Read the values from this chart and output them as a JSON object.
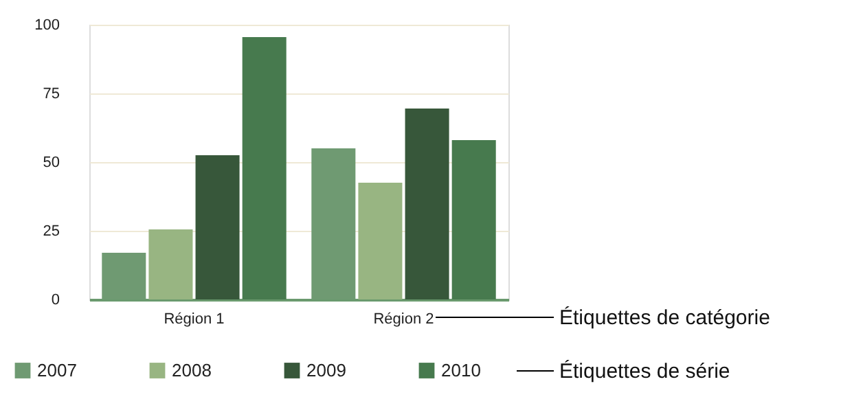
{
  "chart_data": {
    "type": "bar",
    "categories": [
      "Région 1",
      "Région 2"
    ],
    "series": [
      {
        "name": "2007",
        "color": "#6f9a72",
        "values": [
          17,
          55
        ]
      },
      {
        "name": "2008",
        "color": "#98b582",
        "values": [
          25.5,
          42.5
        ]
      },
      {
        "name": "2009",
        "color": "#37573a",
        "values": [
          52.5,
          69.5
        ]
      },
      {
        "name": "2010",
        "color": "#477a4e",
        "values": [
          95.5,
          58
        ]
      }
    ],
    "ylim": [
      0,
      100
    ],
    "yticks": [
      0,
      25,
      50,
      75,
      100
    ],
    "grid": "y",
    "legend": "bottom",
    "annotations": [
      "Étiquettes de catégorie",
      "Étiquettes de série"
    ]
  }
}
